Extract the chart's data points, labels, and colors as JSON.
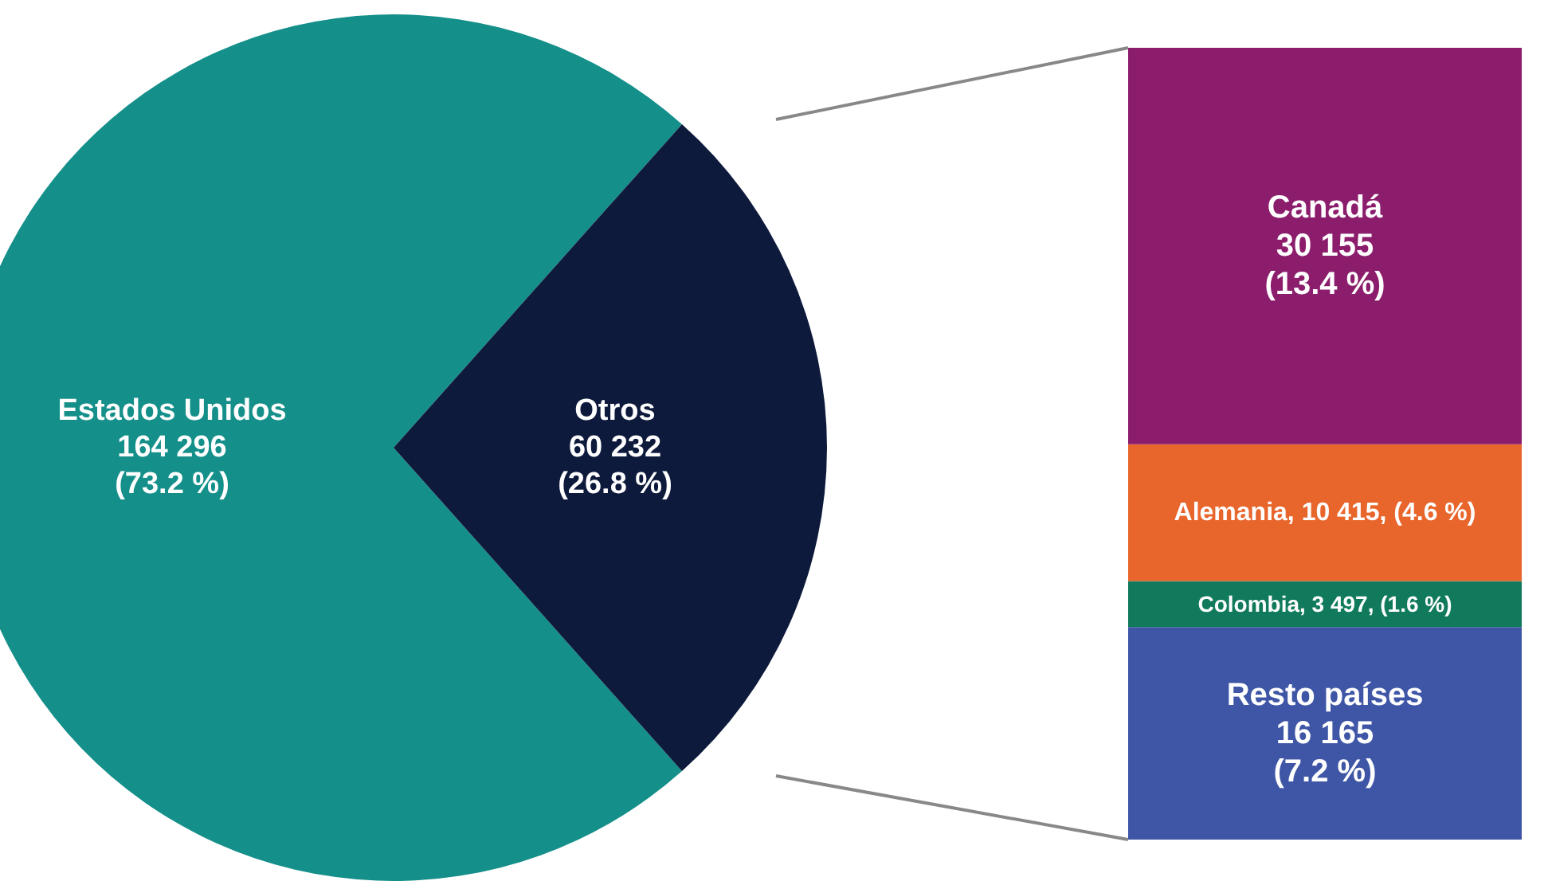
{
  "chart_data": [
    {
      "type": "pie",
      "categories": [
        "Estados Unidos",
        "Otros"
      ],
      "values": [
        164296,
        60232
      ],
      "colors": [
        "#148f8a",
        "#0e1a3c"
      ],
      "value_labels": [
        "164 296\n(73.2 %)",
        "60 232\n(26.8 %)"
      ],
      "legend": false
    },
    {
      "type": "bar",
      "stacked": true,
      "categories": [
        null
      ],
      "tick_labels": false,
      "legend": false,
      "series": [
        {
          "name": "Resto países",
          "color": "#3f56a6",
          "values": [
            16165
          ],
          "value_labels": [
            "16 165\n(7.2 %)"
          ]
        },
        {
          "name": "Colombia",
          "color": "#117a5c",
          "values": [
            3497
          ],
          "value_labels": [
            ", 3 497, (1.6 %)"
          ]
        },
        {
          "name": "Alemania",
          "color": "#e8652b",
          "values": [
            10415
          ],
          "value_labels": [
            ", 10 415, (4.6 %)"
          ]
        },
        {
          "name": "Canadá",
          "color": "#8b1d6c",
          "values": [
            30155
          ],
          "value_labels": [
            "30 155\n(13.4 %)"
          ]
        }
      ]
    }
  ]
}
